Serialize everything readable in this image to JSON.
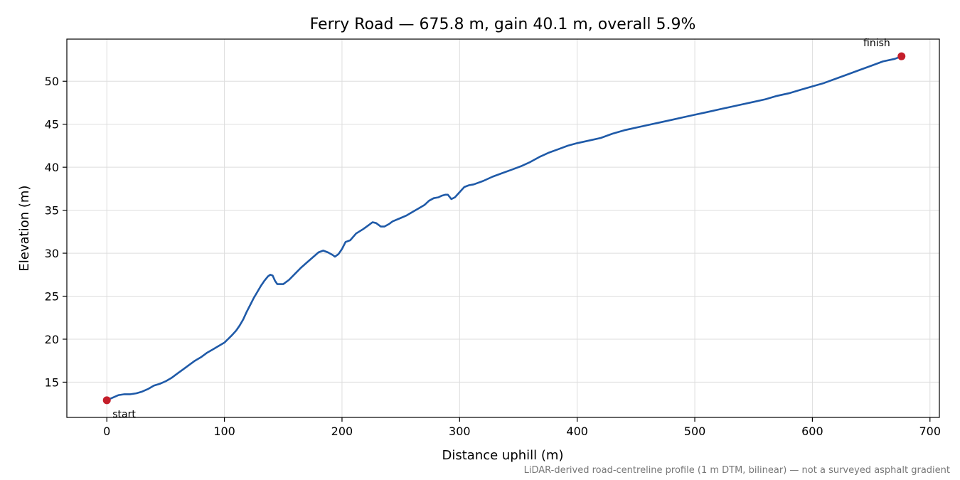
{
  "chart_data": {
    "type": "line",
    "title": "Ferry Road — 675.8 m, gain 40.1 m, overall 5.9%",
    "xlabel": "Distance uphill (m)",
    "ylabel": "Elevation (m)",
    "xlim": [
      -34,
      708
    ],
    "ylim": [
      10.9,
      54.9
    ],
    "x_ticks": [
      0,
      100,
      200,
      300,
      400,
      500,
      600,
      700
    ],
    "y_ticks": [
      15,
      20,
      25,
      30,
      35,
      40,
      45,
      50
    ],
    "grid": true,
    "series": [
      {
        "color": "#1f5aa8",
        "points": [
          [
            0,
            12.9
          ],
          [
            5,
            13.2
          ],
          [
            10,
            13.5
          ],
          [
            15,
            13.6
          ],
          [
            20,
            13.6
          ],
          [
            25,
            13.7
          ],
          [
            30,
            13.9
          ],
          [
            35,
            14.2
          ],
          [
            40,
            14.6
          ],
          [
            45,
            14.8
          ],
          [
            50,
            15.1
          ],
          [
            55,
            15.5
          ],
          [
            60,
            16.0
          ],
          [
            65,
            16.5
          ],
          [
            70,
            17.0
          ],
          [
            75,
            17.5
          ],
          [
            80,
            17.9
          ],
          [
            85,
            18.4
          ],
          [
            90,
            18.8
          ],
          [
            95,
            19.2
          ],
          [
            100,
            19.6
          ],
          [
            103,
            20.0
          ],
          [
            106,
            20.4
          ],
          [
            110,
            21.0
          ],
          [
            113,
            21.6
          ],
          [
            116,
            22.3
          ],
          [
            119,
            23.2
          ],
          [
            122,
            24.0
          ],
          [
            125,
            24.8
          ],
          [
            128,
            25.5
          ],
          [
            131,
            26.2
          ],
          [
            134,
            26.8
          ],
          [
            137,
            27.3
          ],
          [
            139,
            27.5
          ],
          [
            141,
            27.4
          ],
          [
            143,
            26.8
          ],
          [
            145,
            26.4
          ],
          [
            150,
            26.4
          ],
          [
            155,
            26.9
          ],
          [
            160,
            27.6
          ],
          [
            165,
            28.3
          ],
          [
            170,
            28.9
          ],
          [
            175,
            29.5
          ],
          [
            180,
            30.1
          ],
          [
            184,
            30.3
          ],
          [
            188,
            30.1
          ],
          [
            192,
            29.8
          ],
          [
            194,
            29.6
          ],
          [
            197,
            29.9
          ],
          [
            200,
            30.5
          ],
          [
            203,
            31.3
          ],
          [
            207,
            31.5
          ],
          [
            212,
            32.3
          ],
          [
            218,
            32.8
          ],
          [
            222,
            33.2
          ],
          [
            226,
            33.6
          ],
          [
            229,
            33.5
          ],
          [
            233,
            33.1
          ],
          [
            236,
            33.1
          ],
          [
            240,
            33.4
          ],
          [
            243,
            33.7
          ],
          [
            250,
            34.1
          ],
          [
            255,
            34.4
          ],
          [
            260,
            34.8
          ],
          [
            265,
            35.2
          ],
          [
            270,
            35.6
          ],
          [
            274,
            36.1
          ],
          [
            278,
            36.4
          ],
          [
            282,
            36.5
          ],
          [
            285,
            36.7
          ],
          [
            288,
            36.8
          ],
          [
            290,
            36.8
          ],
          [
            293,
            36.3
          ],
          [
            296,
            36.5
          ],
          [
            300,
            37.1
          ],
          [
            304,
            37.7
          ],
          [
            308,
            37.9
          ],
          [
            312,
            38.0
          ],
          [
            320,
            38.4
          ],
          [
            328,
            38.9
          ],
          [
            336,
            39.3
          ],
          [
            344,
            39.7
          ],
          [
            352,
            40.1
          ],
          [
            360,
            40.6
          ],
          [
            368,
            41.2
          ],
          [
            376,
            41.7
          ],
          [
            384,
            42.1
          ],
          [
            392,
            42.5
          ],
          [
            400,
            42.8
          ],
          [
            410,
            43.1
          ],
          [
            420,
            43.4
          ],
          [
            430,
            43.9
          ],
          [
            440,
            44.3
          ],
          [
            450,
            44.6
          ],
          [
            460,
            44.9
          ],
          [
            470,
            45.2
          ],
          [
            480,
            45.5
          ],
          [
            490,
            45.8
          ],
          [
            500,
            46.1
          ],
          [
            510,
            46.4
          ],
          [
            520,
            46.7
          ],
          [
            530,
            47.0
          ],
          [
            540,
            47.3
          ],
          [
            550,
            47.6
          ],
          [
            560,
            47.9
          ],
          [
            570,
            48.3
          ],
          [
            580,
            48.6
          ],
          [
            590,
            49.0
          ],
          [
            600,
            49.4
          ],
          [
            610,
            49.8
          ],
          [
            620,
            50.3
          ],
          [
            630,
            50.8
          ],
          [
            640,
            51.3
          ],
          [
            650,
            51.8
          ],
          [
            660,
            52.3
          ],
          [
            670,
            52.6
          ],
          [
            675.8,
            52.9
          ]
        ]
      }
    ],
    "markers": [
      {
        "x": 0,
        "y": 12.9,
        "label": "start",
        "color": "#c41e2a"
      },
      {
        "x": 675.8,
        "y": 52.9,
        "label": "finish",
        "color": "#c41e2a"
      }
    ],
    "footnote": "LiDAR-derived road-centreline profile (1 m DTM, bilinear) — not a surveyed asphalt gradient"
  }
}
